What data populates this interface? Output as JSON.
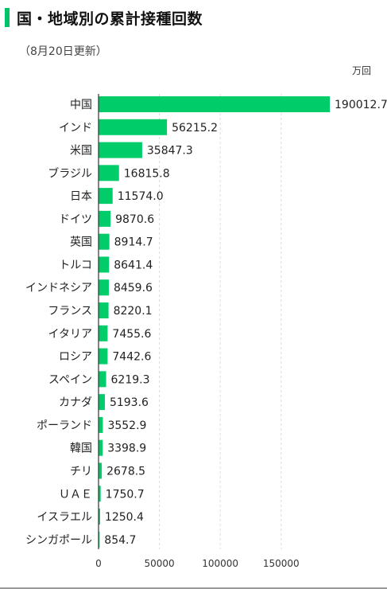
{
  "header": {
    "title": "国・地域別の累計接種回数",
    "subtitle": "（8月20日更新）",
    "unit": "万回",
    "accent_color": "#00c266"
  },
  "chart_data": {
    "type": "bar",
    "orientation": "horizontal",
    "categories": [
      "中国",
      "インド",
      "米国",
      "ブラジル",
      "日本",
      "ドイツ",
      "英国",
      "トルコ",
      "インドネシア",
      "フランス",
      "イタリア",
      "ロシア",
      "スペイン",
      "カナダ",
      "ポーランド",
      "韓国",
      "チリ",
      "ＵＡＥ",
      "イスラエル",
      "シンガポール"
    ],
    "values": [
      190012.7,
      56215.2,
      35847.3,
      16815.8,
      11574.0,
      9870.6,
      8914.7,
      8641.4,
      8459.6,
      8220.1,
      7455.6,
      7442.6,
      6219.3,
      5193.6,
      3552.9,
      3398.9,
      2678.5,
      1750.7,
      1250.4,
      854.7
    ],
    "value_labels": [
      "190012.7",
      "56215.2",
      "35847.3",
      "16815.8",
      "11574.0",
      "9870.6",
      "8914.7",
      "8641.4",
      "8459.6",
      "8220.1",
      "7455.6",
      "7442.6",
      "6219.3",
      "5193.6",
      "3552.9",
      "3398.9",
      "2678.5",
      "1750.7",
      "1250.4",
      "854.7"
    ],
    "xticks": [
      0,
      50000,
      100000,
      150000
    ],
    "xlim": [
      0,
      200000
    ],
    "bar_color": "#00cc6a",
    "grid": true
  }
}
